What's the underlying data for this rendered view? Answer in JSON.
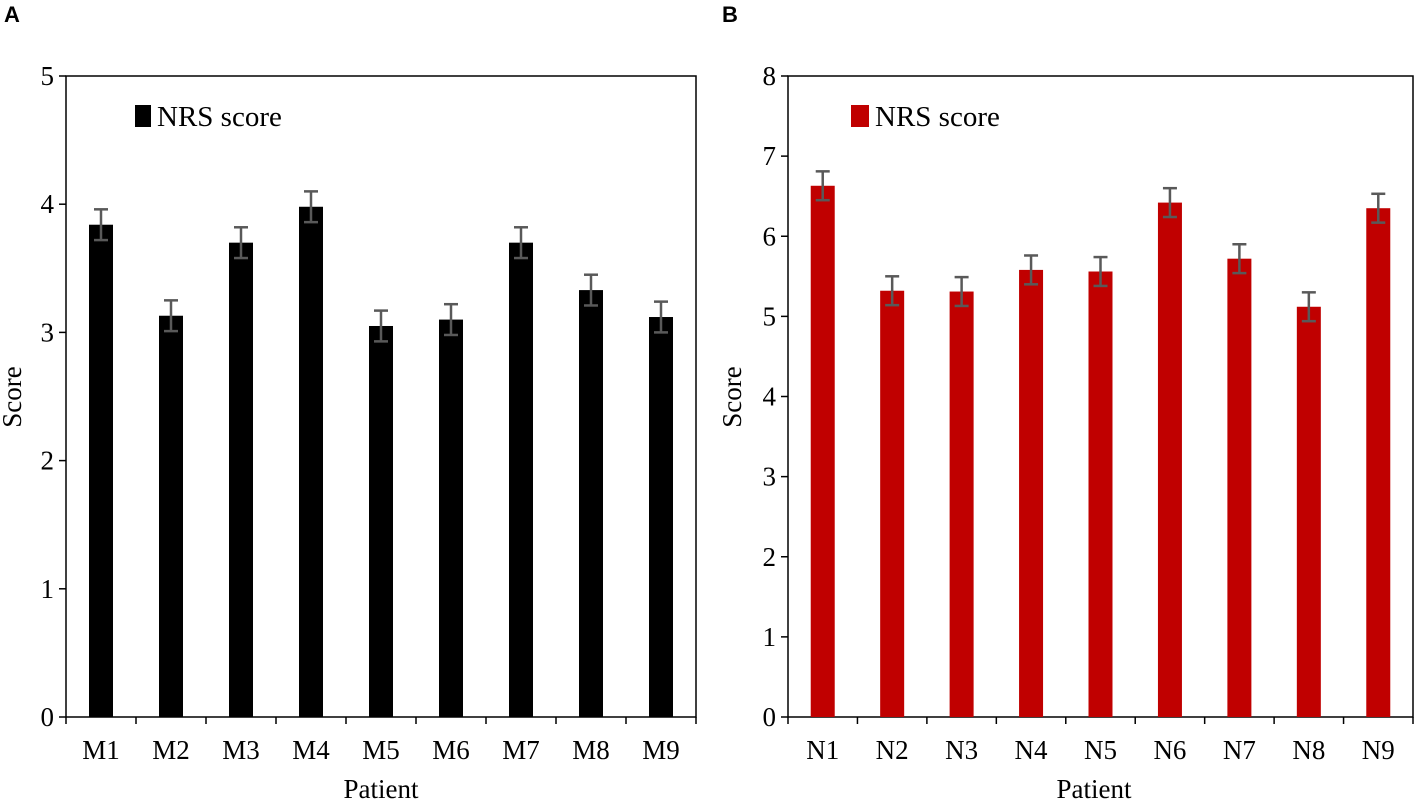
{
  "chart_data": [
    {
      "type": "bar",
      "panel": "A",
      "categories": [
        "M1",
        "M2",
        "M3",
        "M4",
        "M5",
        "M6",
        "M7",
        "M8",
        "M9"
      ],
      "series": [
        {
          "name": "NRS score",
          "color": "#000000",
          "values": [
            3.84,
            3.13,
            3.7,
            3.98,
            3.05,
            3.1,
            3.7,
            3.33,
            3.12
          ],
          "errors": [
            0.12,
            0.12,
            0.12,
            0.12,
            0.12,
            0.12,
            0.12,
            0.12,
            0.12
          ]
        }
      ],
      "xlabel": "Patient",
      "ylabel": "Score",
      "ylim": [
        0,
        5
      ],
      "yticks": [
        "0",
        "1",
        "2",
        "3",
        "4",
        "5"
      ],
      "legend_label": "NRS score",
      "legend_position": "top-left",
      "error_bar_color": "#595959"
    },
    {
      "type": "bar",
      "panel": "B",
      "categories": [
        "N1",
        "N2",
        "N3",
        "N4",
        "N5",
        "N6",
        "N7",
        "N8",
        "N9"
      ],
      "series": [
        {
          "name": "NRS score",
          "color": "#C00000",
          "values": [
            6.63,
            5.32,
            5.31,
            5.58,
            5.56,
            6.42,
            5.72,
            5.12,
            6.35
          ],
          "errors": [
            0.18,
            0.18,
            0.18,
            0.18,
            0.18,
            0.18,
            0.18,
            0.18,
            0.18
          ]
        }
      ],
      "xlabel": "Patient",
      "ylabel": "Score",
      "ylim": [
        0,
        8
      ],
      "yticks": [
        "0",
        "1",
        "2",
        "3",
        "4",
        "5",
        "6",
        "7",
        "8"
      ],
      "legend_label": "NRS score",
      "legend_position": "top-left",
      "error_bar_color": "#595959"
    }
  ]
}
